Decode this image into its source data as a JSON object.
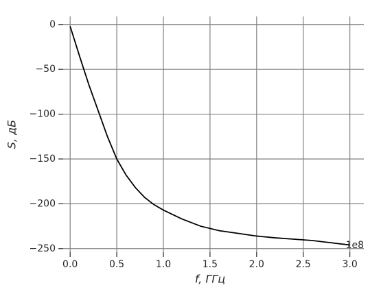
{
  "chart_data": {
    "type": "line",
    "xlabel": "f, ГГц",
    "ylabel": "S, дБ",
    "offset_text": "1e8",
    "x": [
      0,
      0.1,
      0.2,
      0.3,
      0.4,
      0.5,
      0.6,
      0.7,
      0.8,
      0.9,
      1.0,
      1.2,
      1.4,
      1.6,
      1.8,
      2.0,
      2.2,
      2.4,
      2.6,
      2.8,
      3.0
    ],
    "series": [
      {
        "color": "#000000",
        "values": [
          -2,
          -35,
          -67,
          -96,
          -125,
          -150,
          -168,
          -182,
          -193,
          -201,
          -207,
          -217,
          -225,
          -230,
          -233,
          -236,
          -238,
          -239.5,
          -241,
          -243.5,
          -246
        ]
      }
    ],
    "xlim": [
      -0.075,
      3.15
    ],
    "ylim": [
      -254,
      9
    ],
    "xticks": [
      {
        "value": 0,
        "label": "0.0"
      },
      0.5,
      {
        "value": 1,
        "label": "1.0"
      },
      1.5,
      {
        "value": 2,
        "label": "2.0"
      },
      2.5,
      {
        "value": 3,
        "label": "3.0"
      }
    ],
    "yticks": [
      0,
      {
        "value": -50,
        "label": "−50"
      },
      {
        "value": -100,
        "label": "−100"
      },
      {
        "value": -150,
        "label": "−150"
      },
      {
        "value": -200,
        "label": "−200"
      },
      {
        "value": -250,
        "label": "−250"
      }
    ],
    "grid": true
  }
}
